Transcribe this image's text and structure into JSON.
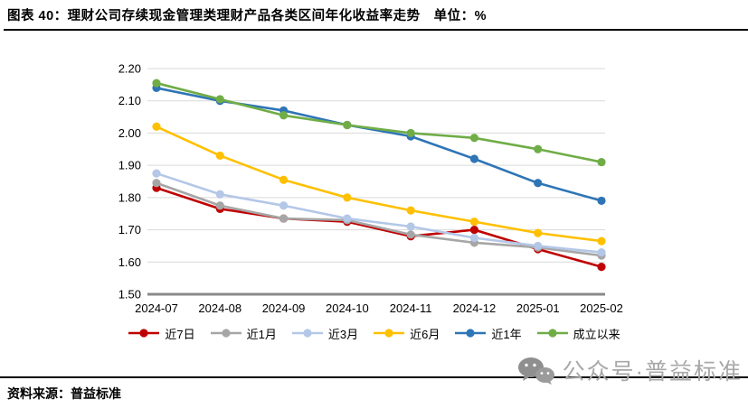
{
  "header": {
    "title": "图表 40：理财公司存续现金管理类理财产品各类区间年化收益率走势　单位：%"
  },
  "footer": {
    "source": "资料来源：普益标准"
  },
  "watermark": {
    "icon": "wechat-icon",
    "text": "公众号·普益标准"
  },
  "chart_data": {
    "type": "line",
    "title": "理财公司存续现金管理类理财产品各类区间年化收益率走势",
    "unit": "%",
    "categories": [
      "2024-07",
      "2024-08",
      "2024-09",
      "2024-10",
      "2024-11",
      "2024-12",
      "2025-01",
      "2025-02"
    ],
    "series": [
      {
        "name": "近7日",
        "color": "#C00000",
        "values": [
          1.83,
          1.765,
          1.735,
          1.725,
          1.68,
          1.7,
          1.64,
          1.585
        ]
      },
      {
        "name": "近1月",
        "color": "#A6A6A6",
        "values": [
          1.845,
          1.775,
          1.735,
          1.73,
          1.685,
          1.66,
          1.645,
          1.62
        ]
      },
      {
        "name": "近3月",
        "color": "#B4C7E7",
        "values": [
          1.875,
          1.81,
          1.775,
          1.735,
          1.71,
          1.675,
          1.65,
          1.63
        ]
      },
      {
        "name": "近6月",
        "color": "#FFC000",
        "values": [
          2.02,
          1.93,
          1.855,
          1.8,
          1.76,
          1.725,
          1.69,
          1.665
        ]
      },
      {
        "name": "近1年",
        "color": "#2E75B6",
        "values": [
          2.14,
          2.1,
          2.07,
          2.025,
          1.99,
          1.92,
          1.845,
          1.79
        ]
      },
      {
        "name": "成立以来",
        "color": "#70AD47",
        "values": [
          2.155,
          2.105,
          2.055,
          2.025,
          2.0,
          1.985,
          1.95,
          1.91
        ]
      }
    ],
    "ylim": [
      1.5,
      2.2
    ],
    "ytick_step": 0.1,
    "ytick_labels": [
      "1.50",
      "1.60",
      "1.70",
      "1.80",
      "1.90",
      "2.00",
      "2.10",
      "2.20"
    ],
    "grid": true,
    "gridline_color": "#d9d9d9",
    "axis_line_color": "#898989",
    "legend_position": "bottom"
  }
}
